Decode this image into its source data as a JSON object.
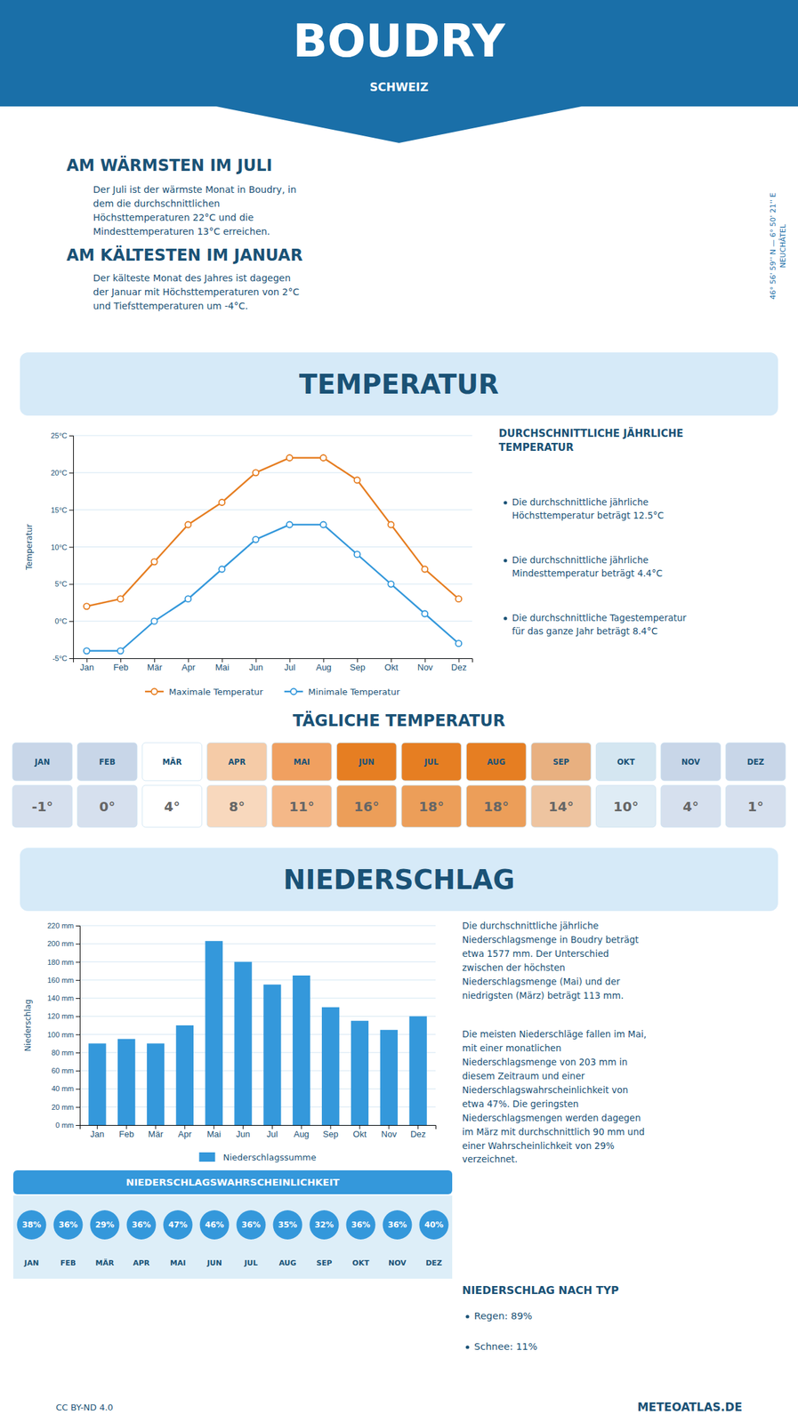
{
  "title": "BOUDRY",
  "subtitle": "SCHWEIZ",
  "warm_title": "AM WÄRMSTEN IM JULI",
  "warm_text": "Der Juli ist der wärmste Monat in Boudry, in\ndem die durchschnittlichen\nHöchsttemperaturen 22°C und die\nMindesttemperaturen 13°C erreichen.",
  "cold_title": "AM KÄLTESTEN IM JANUAR",
  "cold_text": "Der kälteste Monat des Jahres ist dagegen\nder Januar mit Höchsttemperaturen von 2°C\nund Tiefsttemperaturen um -4°C.",
  "coord_text": "46° 56' 59'' N — 6° 50' 21'' E\nNEUCHÂTEL",
  "avg_stats_title": "DURCHSCHNITTLICHE JÄHRLICHE\nTEMPERATUR",
  "avg_stats": [
    "Die durchschnittliche jährliche\nHöchsttemperatur beträgt 12.5°C",
    "Die durchschnittliche jährliche\nMindesttemperatur beträgt 4.4°C",
    "Die durchschnittliche Tagestemperatur\nfür das ganze Jahr beträgt 8.4°C"
  ],
  "precip_text": "Die durchschnittliche jährliche\nNiederschlagsmenge in Boudry beträgt\netwa 1577 mm. Der Unterschied\nzwischen der höchsten\nNiederschlagsmenge (Mai) und der\nniedrigsten (März) beträgt 113 mm.",
  "precip_text2": "Die meisten Niederschläge fallen im Mai,\nmit einer monatlichen\nNiederschlagsmenge von 203 mm in\ndiesem Zeitraum und einer\nNiederschlagswahrscheinlichkeit von\netwa 47%. Die geringsten\nNiederschlagsmengen werden dagegen\nim März mit durchschnittlich 90 mm und\neiner Wahrscheinlichkeit von 29%\nverzeichnet.",
  "precip_type_title": "NIEDERSCHLAG NACH TYP",
  "precip_types": [
    "Regen: 89%",
    "Schnee: 11%"
  ],
  "footer_left": "CC BY-ND 4.0",
  "footer_right": "METEOATLAS.DE",
  "chart_data": [
    {
      "type": "line",
      "title": "TEMPERATUR",
      "ylabel": "Temperatur",
      "categories": [
        "Jan",
        "Feb",
        "Mär",
        "Apr",
        "Mai",
        "Jun",
        "Jul",
        "Aug",
        "Sep",
        "Okt",
        "Nov",
        "Dez"
      ],
      "series": [
        {
          "name": "Maximale Temperatur",
          "color": "#e67e22",
          "marker": "circle",
          "values": [
            2,
            3,
            8,
            13,
            16,
            20,
            22,
            22,
            19,
            13,
            7,
            3
          ]
        },
        {
          "name": "Minimale Temperatur",
          "color": "#3498db",
          "marker": "circle",
          "values": [
            -4,
            -4,
            0,
            3,
            7,
            11,
            13,
            13,
            9,
            5,
            1,
            -3
          ]
        }
      ],
      "ylim": [
        -5,
        25
      ],
      "yticks": [
        {
          "value": -5,
          "label": "-5°C"
        },
        {
          "value": 0,
          "label": "0°C"
        },
        {
          "value": 5,
          "label": "5°C"
        },
        {
          "value": 10,
          "label": "10°C"
        },
        {
          "value": 15,
          "label": "15°C"
        },
        {
          "value": 20,
          "label": "20°C"
        },
        {
          "value": 25,
          "label": "25°C"
        }
      ],
      "grid": true,
      "legend": "bottom"
    },
    {
      "type": "table",
      "title": "TÄGLICHE TEMPERATUR",
      "marker": "square",
      "categories": [
        "JAN",
        "FEB",
        "MÄR",
        "APR",
        "MAI",
        "JUN",
        "JUL",
        "AUG",
        "SEP",
        "OKT",
        "NOV",
        "DEZ"
      ],
      "values": [
        -1,
        0,
        4,
        8,
        11,
        16,
        18,
        18,
        14,
        10,
        4,
        1
      ],
      "value_labels": [
        "-1°",
        "0°",
        "4°",
        "8°",
        "11°",
        "16°",
        "18°",
        "18°",
        "14°",
        "10°",
        "4°",
        "1°"
      ],
      "colors": [
        "#c8d6e8",
        "#c8d6e8",
        "#ffffff",
        "#f5cba7",
        "#f0a060",
        "#e67e22",
        "#e67e22",
        "#e67e22",
        "#e8b080",
        "#d4e6f1",
        "#c8d6e8",
        "#c8d6e8"
      ],
      "data_labels": true
    },
    {
      "type": "bar",
      "title": "NIEDERSCHLAG",
      "ylabel": "Niederschlag",
      "categories": [
        "Jan",
        "Feb",
        "Mär",
        "Apr",
        "Mai",
        "Jun",
        "Jul",
        "Aug",
        "Sep",
        "Okt",
        "Nov",
        "Dez"
      ],
      "series": [
        {
          "name": "Niederschlagssumme",
          "color": "#3498db",
          "values": [
            90,
            95,
            90,
            110,
            203,
            180,
            155,
            165,
            130,
            115,
            105,
            120
          ]
        }
      ],
      "ylim": [
        0,
        220
      ],
      "yticks": [
        {
          "value": 0,
          "label": "0 mm"
        },
        {
          "value": 20,
          "label": "20 mm"
        },
        {
          "value": 40,
          "label": "40 mm"
        },
        {
          "value": 60,
          "label": "60 mm"
        },
        {
          "value": 80,
          "label": "80 mm"
        },
        {
          "value": 100,
          "label": "100 mm"
        },
        {
          "value": 120,
          "label": "120 mm"
        },
        {
          "value": 140,
          "label": "140 mm"
        },
        {
          "value": 160,
          "label": "160 mm"
        },
        {
          "value": 180,
          "label": "180 mm"
        },
        {
          "value": 200,
          "label": "200 mm"
        },
        {
          "value": 220,
          "label": "220 mm"
        }
      ],
      "grid": true,
      "legend": "bottom"
    },
    {
      "type": "table",
      "title": "NIEDERSCHLAGSWAHRSCHEINLICHKEIT",
      "marker": "circle",
      "categories": [
        "JAN",
        "FEB",
        "MÄR",
        "APR",
        "MAI",
        "JUN",
        "JUL",
        "AUG",
        "SEP",
        "OKT",
        "NOV",
        "DEZ"
      ],
      "values": [
        38,
        36,
        29,
        36,
        47,
        46,
        36,
        35,
        32,
        36,
        36,
        40
      ],
      "value_labels": [
        "38%",
        "36%",
        "29%",
        "36%",
        "47%",
        "46%",
        "36%",
        "35%",
        "32%",
        "36%",
        "36%",
        "40%"
      ],
      "color": "#3498db",
      "data_labels": true
    }
  ]
}
